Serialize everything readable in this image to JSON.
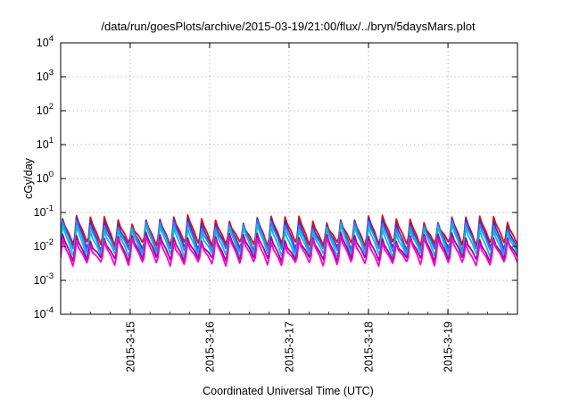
{
  "chart_data": {
    "type": "line",
    "title": "/data/run/goesPlots/archive/2015-03-19/21:00/flux/../bryn/5daysMars.plot",
    "xlabel": "Coordinated Universal Time (UTC)",
    "ylabel": "cGy/day",
    "yscale": "log",
    "ylim": [
      0.0001,
      10000
    ],
    "xlim": [
      "2015-03-14 03:00",
      "2015-03-19 21:00"
    ],
    "grid": true,
    "y_ticks": [
      {
        "base": "10",
        "exp": "-4",
        "value": 0.0001
      },
      {
        "base": "10",
        "exp": "-3",
        "value": 0.001
      },
      {
        "base": "10",
        "exp": "-2",
        "value": 0.01
      },
      {
        "base": "10",
        "exp": "-1",
        "value": 0.1
      },
      {
        "base": "10",
        "exp": "0",
        "value": 1
      },
      {
        "base": "10",
        "exp": "1",
        "value": 10
      },
      {
        "base": "10",
        "exp": "2",
        "value": 100
      },
      {
        "base": "10",
        "exp": "3",
        "value": 1000
      },
      {
        "base": "10",
        "exp": "4",
        "value": 10000
      }
    ],
    "x_ticks": [
      "2015-3-15",
      "2015-3-16",
      "2015-3-17",
      "2015-3-18",
      "2015-3-19"
    ],
    "x_tick_hours": [
      21,
      45,
      69,
      93,
      117
    ],
    "x_span_hours": 138,
    "orbit_period_hours": 4.2,
    "series": [
      {
        "color": "#ff0000",
        "peak": 0.065,
        "trough": 0.012
      },
      {
        "color": "#2a3ccc",
        "peak": 0.055,
        "trough": 0.0085
      },
      {
        "color": "#3b7bff",
        "peak": 0.045,
        "trough": 0.0075
      },
      {
        "color": "#00c0d8",
        "peak": 0.034,
        "trough": 0.0055
      },
      {
        "color": "#a000a0",
        "peak": 0.02,
        "trough": 0.0042
      },
      {
        "color": "#ff00cc",
        "peak": 0.0155,
        "trough": 0.0031
      }
    ]
  }
}
